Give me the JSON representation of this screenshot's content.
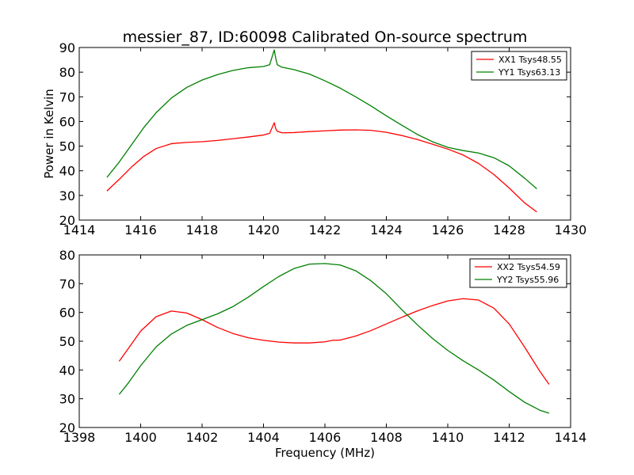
{
  "chart_data": [
    {
      "type": "line",
      "title": "messier_87, ID:60098 Calibrated On-source spectrum",
      "xlabel": "",
      "ylabel": "Power in Kelvin",
      "xlim": [
        1414,
        1430
      ],
      "ylim": [
        20,
        90
      ],
      "xticks": [
        1414,
        1416,
        1418,
        1420,
        1422,
        1424,
        1426,
        1428,
        1430
      ],
      "yticks": [
        20,
        30,
        40,
        50,
        60,
        70,
        80,
        90
      ],
      "grid": false,
      "legend_position": "top-right",
      "series": [
        {
          "name": "XX1 Tsys48.55",
          "color": "#ff0000",
          "x": [
            1414.9,
            1415.3,
            1415.7,
            1416.1,
            1416.5,
            1417.0,
            1417.5,
            1418.0,
            1418.5,
            1419.0,
            1419.5,
            1420.0,
            1420.2,
            1420.35,
            1420.4,
            1420.45,
            1420.6,
            1421.0,
            1421.5,
            1422.0,
            1422.5,
            1423.0,
            1423.5,
            1424.0,
            1424.5,
            1425.0,
            1425.5,
            1426.0,
            1426.5,
            1427.0,
            1427.5,
            1428.0,
            1428.5,
            1428.9
          ],
          "y": [
            31.8,
            36.5,
            41.5,
            45.8,
            49.0,
            51.0,
            51.5,
            51.8,
            52.3,
            53.0,
            53.7,
            54.5,
            55.2,
            59.5,
            57.0,
            56.0,
            55.4,
            55.5,
            55.9,
            56.2,
            56.5,
            56.6,
            56.4,
            55.6,
            54.3,
            52.7,
            50.8,
            48.8,
            46.4,
            43.0,
            38.5,
            33.0,
            27.0,
            23.3
          ]
        },
        {
          "name": "YY1 Tsys63.13",
          "color": "#008000",
          "x": [
            1414.9,
            1415.3,
            1415.7,
            1416.1,
            1416.5,
            1417.0,
            1417.5,
            1418.0,
            1418.5,
            1419.0,
            1419.5,
            1420.0,
            1420.2,
            1420.35,
            1420.4,
            1420.45,
            1420.6,
            1421.0,
            1421.5,
            1422.0,
            1422.5,
            1423.0,
            1423.5,
            1424.0,
            1424.5,
            1425.0,
            1425.5,
            1426.0,
            1426.5,
            1427.0,
            1427.5,
            1428.0,
            1428.5,
            1428.9
          ],
          "y": [
            37.3,
            43.5,
            50.5,
            57.5,
            63.5,
            69.5,
            73.8,
            76.8,
            79.0,
            80.7,
            81.8,
            82.3,
            83.0,
            89.0,
            85.5,
            83.0,
            82.0,
            81.0,
            79.2,
            76.5,
            73.5,
            70.0,
            66.3,
            62.3,
            58.5,
            54.8,
            51.8,
            49.5,
            48.2,
            47.2,
            45.3,
            42.0,
            37.0,
            32.7
          ]
        }
      ]
    },
    {
      "type": "line",
      "title": "",
      "xlabel": "Frequency (MHz)",
      "ylabel": "",
      "xlim": [
        1398,
        1414
      ],
      "ylim": [
        20,
        80
      ],
      "xticks": [
        1398,
        1400,
        1402,
        1404,
        1406,
        1408,
        1410,
        1412,
        1414
      ],
      "yticks": [
        20,
        30,
        40,
        50,
        60,
        70,
        80
      ],
      "grid": false,
      "legend_position": "top-right",
      "series": [
        {
          "name": "XX2 Tsys54.59",
          "color": "#ff0000",
          "x": [
            1399.3,
            1399.6,
            1400.0,
            1400.5,
            1401.0,
            1401.5,
            1402.0,
            1402.5,
            1403.0,
            1403.5,
            1404.0,
            1404.5,
            1405.0,
            1405.5,
            1406.0,
            1406.25,
            1406.5,
            1407.0,
            1407.5,
            1408.0,
            1408.5,
            1409.0,
            1409.5,
            1410.0,
            1410.5,
            1411.0,
            1411.5,
            1412.0,
            1412.5,
            1413.0,
            1413.3
          ],
          "y": [
            43.0,
            47.5,
            53.5,
            58.5,
            60.5,
            59.8,
            57.5,
            54.8,
            52.7,
            51.2,
            50.3,
            49.7,
            49.4,
            49.4,
            49.8,
            50.3,
            50.4,
            51.8,
            53.7,
            56.0,
            58.3,
            60.5,
            62.4,
            64.0,
            64.8,
            64.3,
            61.5,
            56.0,
            48.0,
            39.5,
            35.0
          ]
        },
        {
          "name": "YY2 Tsys55.96",
          "color": "#008000",
          "x": [
            1399.3,
            1399.6,
            1400.0,
            1400.5,
            1401.0,
            1401.5,
            1402.0,
            1402.5,
            1403.0,
            1403.5,
            1404.0,
            1404.5,
            1405.0,
            1405.5,
            1406.0,
            1406.5,
            1407.0,
            1407.5,
            1408.0,
            1408.5,
            1409.0,
            1409.5,
            1410.0,
            1410.5,
            1411.0,
            1411.5,
            1412.0,
            1412.5,
            1413.0,
            1413.3
          ],
          "y": [
            31.5,
            35.5,
            41.5,
            48.0,
            52.5,
            55.5,
            57.5,
            59.5,
            62.0,
            65.3,
            69.0,
            72.5,
            75.3,
            76.8,
            77.0,
            76.5,
            74.5,
            71.0,
            66.5,
            61.0,
            55.8,
            51.0,
            46.8,
            43.2,
            40.0,
            36.5,
            32.5,
            28.8,
            26.0,
            25.0
          ]
        }
      ]
    }
  ]
}
